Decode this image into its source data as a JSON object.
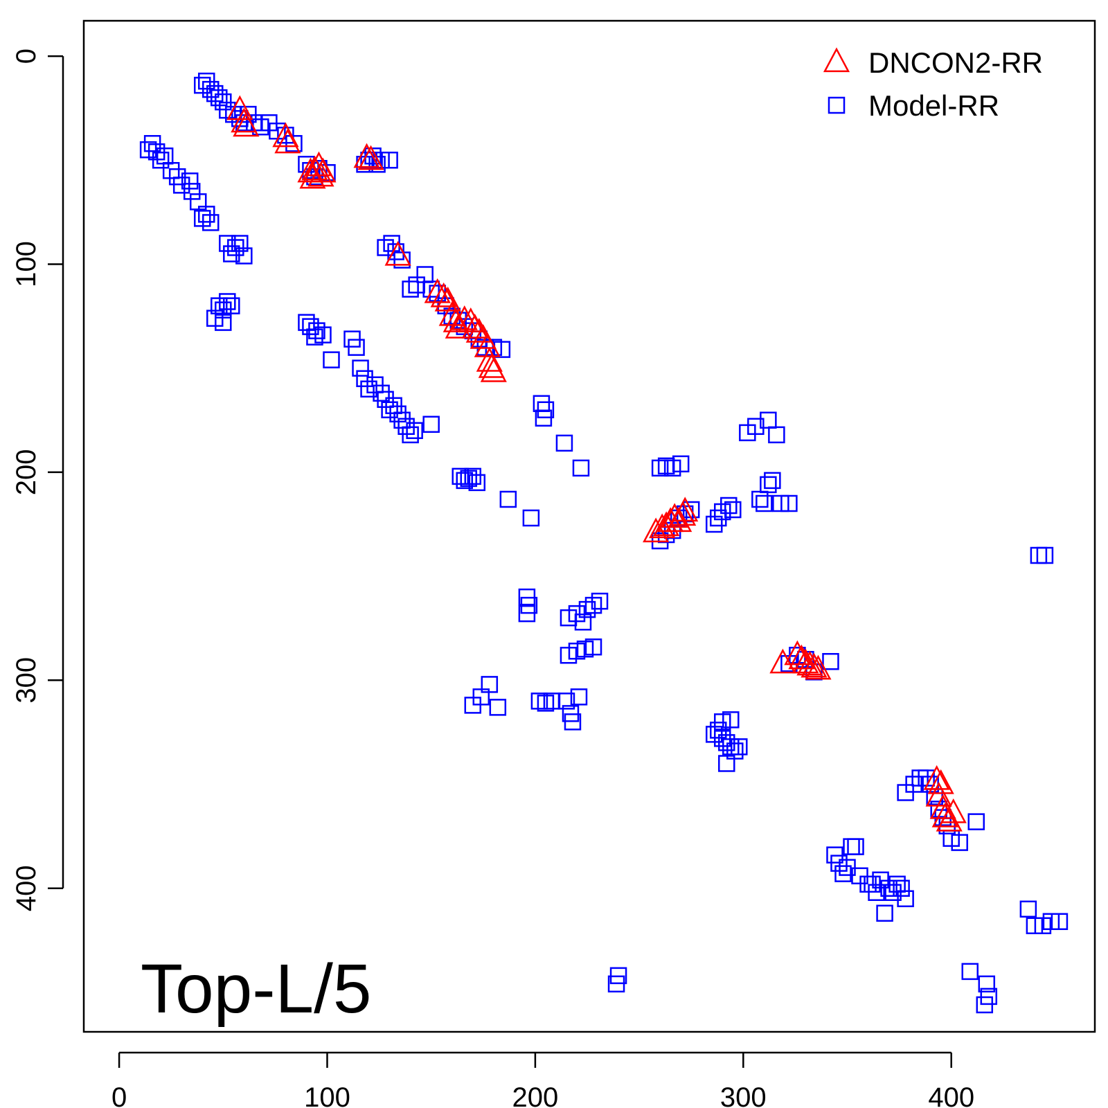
{
  "chart_data": {
    "type": "scatter",
    "title": "",
    "xlabel": "",
    "ylabel": "",
    "annotation": "Top-L/5",
    "xlim": [
      -17,
      469
    ],
    "ylim": [
      -17,
      469
    ],
    "y_axis_inverted": true,
    "x_ticks": [
      0,
      100,
      200,
      300,
      400
    ],
    "y_ticks": [
      0,
      100,
      200,
      300,
      400
    ],
    "grid": false,
    "legend_position": "top-right",
    "series": [
      {
        "name": "DNCON2-RR",
        "marker": "triangle",
        "color": "#ff0000",
        "points": [
          [
            58,
            26
          ],
          [
            60,
            32
          ],
          [
            61,
            34
          ],
          [
            80,
            39
          ],
          [
            81,
            42
          ],
          [
            92,
            56
          ],
          [
            94,
            55
          ],
          [
            96,
            53
          ],
          [
            98,
            56
          ],
          [
            93,
            59
          ],
          [
            97,
            58
          ],
          [
            119,
            49
          ],
          [
            121,
            50
          ],
          [
            134,
            96
          ],
          [
            153,
            114
          ],
          [
            156,
            116
          ],
          [
            158,
            118
          ],
          [
            160,
            125
          ],
          [
            162,
            128
          ],
          [
            163,
            131
          ],
          [
            166,
            127
          ],
          [
            169,
            128
          ],
          [
            171,
            131
          ],
          [
            173,
            133
          ],
          [
            175,
            136
          ],
          [
            177,
            140
          ],
          [
            178,
            147
          ],
          [
            179,
            150
          ],
          [
            180,
            152
          ],
          [
            258,
            229
          ],
          [
            261,
            227
          ],
          [
            263,
            226
          ],
          [
            265,
            224
          ],
          [
            267,
            222
          ],
          [
            269,
            224
          ],
          [
            271,
            221
          ],
          [
            272,
            219
          ],
          [
            319,
            292
          ],
          [
            326,
            288
          ],
          [
            328,
            290
          ],
          [
            330,
            292
          ],
          [
            332,
            293
          ],
          [
            334,
            294
          ],
          [
            336,
            295
          ],
          [
            393,
            348
          ],
          [
            395,
            350
          ],
          [
            394,
            356
          ],
          [
            396,
            362
          ],
          [
            397,
            366
          ],
          [
            399,
            368
          ],
          [
            401,
            364
          ]
        ]
      },
      {
        "name": "Model-RR",
        "marker": "square",
        "color": "#0000ff",
        "points": [
          [
            40,
            14
          ],
          [
            42,
            12
          ],
          [
            44,
            16
          ],
          [
            46,
            18
          ],
          [
            48,
            20
          ],
          [
            50,
            22
          ],
          [
            52,
            26
          ],
          [
            55,
            28
          ],
          [
            58,
            30
          ],
          [
            60,
            32
          ],
          [
            62,
            28
          ],
          [
            65,
            32
          ],
          [
            68,
            34
          ],
          [
            72,
            32
          ],
          [
            76,
            36
          ],
          [
            80,
            38
          ],
          [
            84,
            42
          ],
          [
            90,
            52
          ],
          [
            92,
            55
          ],
          [
            94,
            58
          ],
          [
            96,
            54
          ],
          [
            100,
            56
          ],
          [
            118,
            52
          ],
          [
            120,
            50
          ],
          [
            122,
            48
          ],
          [
            124,
            52
          ],
          [
            126,
            50
          ],
          [
            130,
            50
          ],
          [
            14,
            45
          ],
          [
            16,
            42
          ],
          [
            18,
            46
          ],
          [
            20,
            50
          ],
          [
            22,
            48
          ],
          [
            25,
            55
          ],
          [
            28,
            58
          ],
          [
            30,
            62
          ],
          [
            34,
            60
          ],
          [
            35,
            65
          ],
          [
            38,
            70
          ],
          [
            40,
            78
          ],
          [
            42,
            76
          ],
          [
            44,
            80
          ],
          [
            52,
            90
          ],
          [
            54,
            95
          ],
          [
            56,
            92
          ],
          [
            58,
            90
          ],
          [
            60,
            96
          ],
          [
            48,
            120
          ],
          [
            50,
            122
          ],
          [
            52,
            118
          ],
          [
            54,
            120
          ],
          [
            46,
            126
          ],
          [
            50,
            128
          ],
          [
            128,
            92
          ],
          [
            131,
            90
          ],
          [
            133,
            94
          ],
          [
            136,
            98
          ],
          [
            140,
            112
          ],
          [
            143,
            110
          ],
          [
            147,
            105
          ],
          [
            150,
            112
          ],
          [
            153,
            114
          ],
          [
            157,
            120
          ],
          [
            160,
            125
          ],
          [
            163,
            127
          ],
          [
            166,
            130
          ],
          [
            170,
            132
          ],
          [
            173,
            136
          ],
          [
            176,
            140
          ],
          [
            180,
            140
          ],
          [
            184,
            141
          ],
          [
            90,
            128
          ],
          [
            92,
            130
          ],
          [
            95,
            132
          ],
          [
            98,
            134
          ],
          [
            94,
            135
          ],
          [
            102,
            146
          ],
          [
            112,
            136
          ],
          [
            114,
            140
          ],
          [
            116,
            150
          ],
          [
            118,
            155
          ],
          [
            120,
            160
          ],
          [
            123,
            158
          ],
          [
            126,
            162
          ],
          [
            128,
            165
          ],
          [
            130,
            170
          ],
          [
            132,
            168
          ],
          [
            134,
            172
          ],
          [
            136,
            175
          ],
          [
            138,
            178
          ],
          [
            140,
            182
          ],
          [
            142,
            180
          ],
          [
            150,
            177
          ],
          [
            203,
            167
          ],
          [
            205,
            170
          ],
          [
            204,
            174
          ],
          [
            214,
            186
          ],
          [
            222,
            198
          ],
          [
            164,
            202
          ],
          [
            166,
            204
          ],
          [
            168,
            203
          ],
          [
            170,
            202
          ],
          [
            172,
            205
          ],
          [
            187,
            213
          ],
          [
            198,
            222
          ],
          [
            260,
            198
          ],
          [
            263,
            197
          ],
          [
            266,
            198
          ],
          [
            270,
            196
          ],
          [
            260,
            233
          ],
          [
            263,
            230
          ],
          [
            266,
            228
          ],
          [
            269,
            222
          ],
          [
            272,
            220
          ],
          [
            275,
            218
          ],
          [
            286,
            225
          ],
          [
            288,
            222
          ],
          [
            290,
            219
          ],
          [
            293,
            216
          ],
          [
            295,
            218
          ],
          [
            302,
            181
          ],
          [
            306,
            178
          ],
          [
            312,
            175
          ],
          [
            316,
            182
          ],
          [
            308,
            213
          ],
          [
            310,
            215
          ],
          [
            312,
            206
          ],
          [
            314,
            204
          ],
          [
            318,
            215
          ],
          [
            322,
            215
          ],
          [
            196,
            260
          ],
          [
            197,
            264
          ],
          [
            196,
            268
          ],
          [
            216,
            270
          ],
          [
            220,
            268
          ],
          [
            223,
            272
          ],
          [
            225,
            266
          ],
          [
            228,
            264
          ],
          [
            231,
            262
          ],
          [
            216,
            288
          ],
          [
            220,
            286
          ],
          [
            224,
            285
          ],
          [
            228,
            284
          ],
          [
            174,
            308
          ],
          [
            178,
            302
          ],
          [
            182,
            313
          ],
          [
            170,
            312
          ],
          [
            202,
            310
          ],
          [
            205,
            311
          ],
          [
            208,
            310
          ],
          [
            215,
            310
          ],
          [
            217,
            316
          ],
          [
            218,
            320
          ],
          [
            221,
            308
          ],
          [
            286,
            326
          ],
          [
            288,
            324
          ],
          [
            290,
            328
          ],
          [
            292,
            330
          ],
          [
            294,
            332
          ],
          [
            296,
            334
          ],
          [
            298,
            332
          ],
          [
            290,
            320
          ],
          [
            294,
            319
          ],
          [
            292,
            340
          ],
          [
            322,
            292
          ],
          [
            326,
            288
          ],
          [
            330,
            290
          ],
          [
            334,
            296
          ],
          [
            342,
            291
          ],
          [
            378,
            354
          ],
          [
            382,
            350
          ],
          [
            385,
            347
          ],
          [
            388,
            347
          ],
          [
            390,
            350
          ],
          [
            392,
            356
          ],
          [
            394,
            362
          ],
          [
            396,
            366
          ],
          [
            398,
            370
          ],
          [
            400,
            376
          ],
          [
            404,
            378
          ],
          [
            412,
            368
          ],
          [
            344,
            384
          ],
          [
            346,
            388
          ],
          [
            348,
            393
          ],
          [
            350,
            390
          ],
          [
            352,
            380
          ],
          [
            354,
            380
          ],
          [
            356,
            394
          ],
          [
            360,
            398
          ],
          [
            362,
            398
          ],
          [
            364,
            402
          ],
          [
            366,
            396
          ],
          [
            368,
            412
          ],
          [
            370,
            400
          ],
          [
            372,
            402
          ],
          [
            374,
            398
          ],
          [
            376,
            400
          ],
          [
            378,
            405
          ],
          [
            437,
            410
          ],
          [
            440,
            418
          ],
          [
            444,
            418
          ],
          [
            448,
            416
          ],
          [
            452,
            416
          ],
          [
            442,
            240
          ],
          [
            445,
            240
          ],
          [
            240,
            442
          ],
          [
            239,
            446
          ],
          [
            409,
            440
          ],
          [
            417,
            446
          ],
          [
            418,
            452
          ],
          [
            416,
            456
          ]
        ]
      }
    ]
  }
}
